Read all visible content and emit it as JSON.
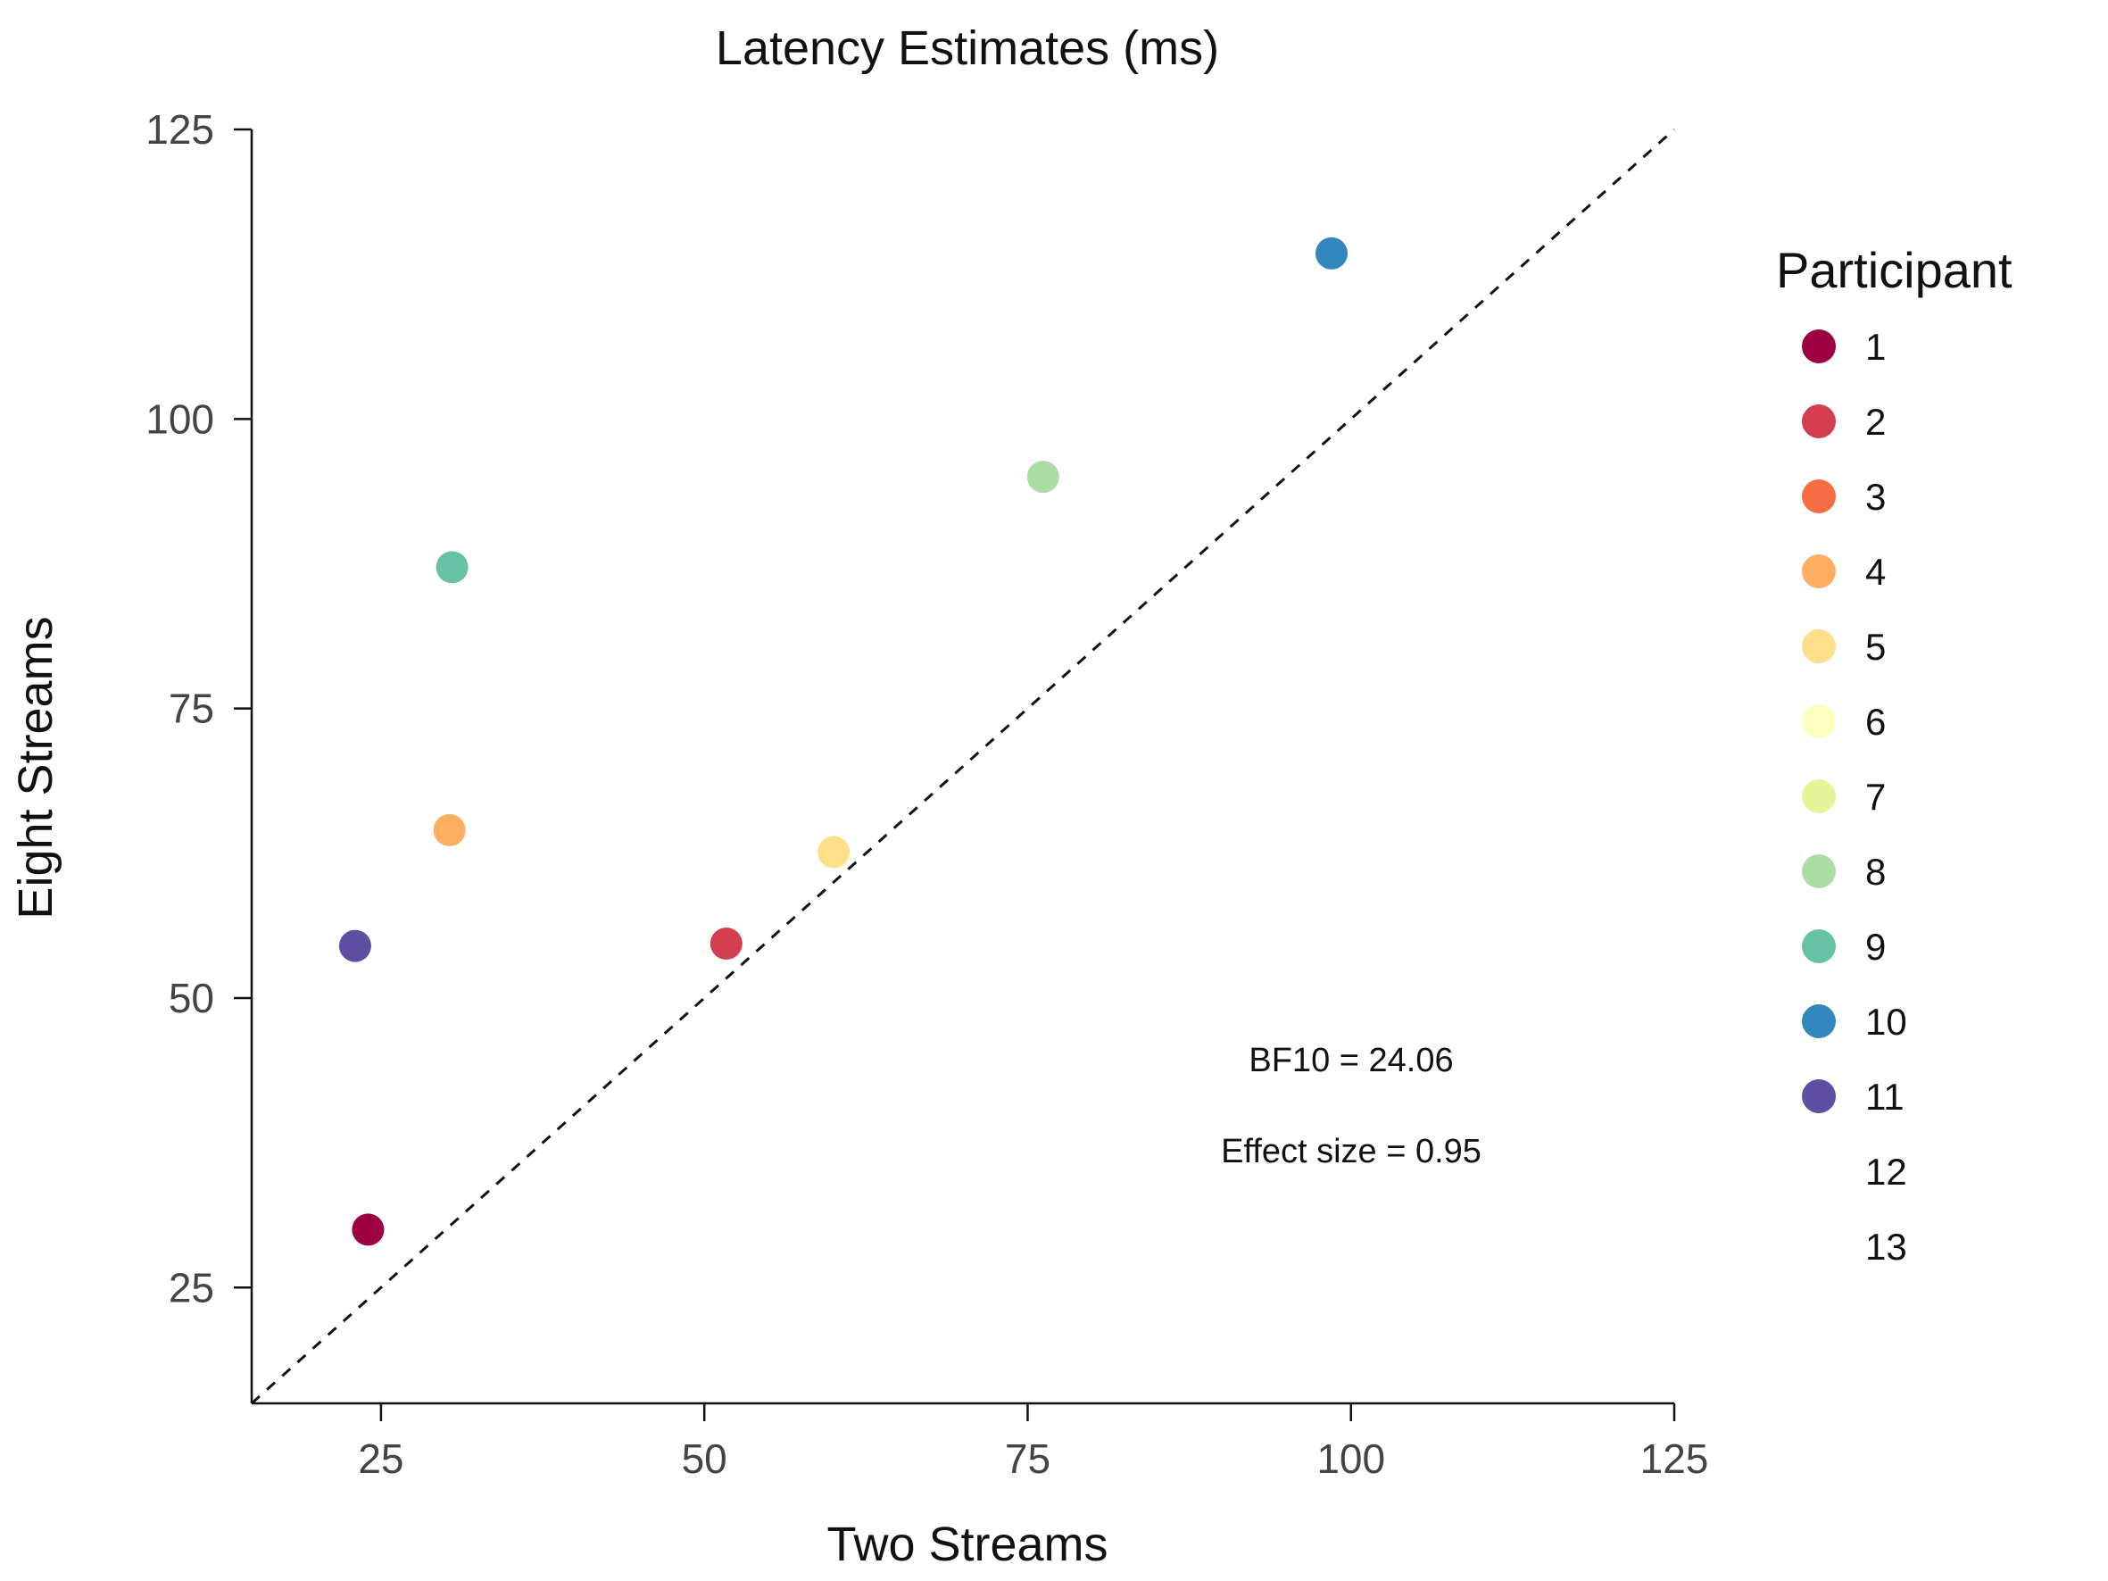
{
  "chart_data": {
    "type": "scatter",
    "title": "Latency Estimates (ms)",
    "xlabel": "Two Streams",
    "ylabel": "Eight Streams",
    "xlim": [
      15,
      125
    ],
    "ylim": [
      15,
      125
    ],
    "xticks": [
      25,
      50,
      75,
      100,
      125
    ],
    "yticks": [
      25,
      50,
      75,
      100,
      125
    ],
    "reference_line": "y = x (dashed)",
    "grid": false,
    "legend": {
      "title": "Participant",
      "placement": "right",
      "entries": [
        {
          "label": "1",
          "color": "#9e0142"
        },
        {
          "label": "2",
          "color": "#d53e4f"
        },
        {
          "label": "3",
          "color": "#f46d43"
        },
        {
          "label": "4",
          "color": "#fdae61"
        },
        {
          "label": "5",
          "color": "#fee08b"
        },
        {
          "label": "6",
          "color": "#ffffbf"
        },
        {
          "label": "7",
          "color": "#e6f598"
        },
        {
          "label": "8",
          "color": "#abdda4"
        },
        {
          "label": "9",
          "color": "#66c2a5"
        },
        {
          "label": "10",
          "color": "#3288bd"
        },
        {
          "label": "11",
          "color": "#5e4fa2"
        },
        {
          "label": "12",
          "color": ""
        },
        {
          "label": "13",
          "color": ""
        }
      ]
    },
    "points": [
      {
        "participant": "1",
        "x": 24,
        "y": 30,
        "color": "#9e0142"
      },
      {
        "participant": "2",
        "x": 51.7,
        "y": 54.7,
        "color": "#d53e4f"
      },
      {
        "participant": "4",
        "x": 30.3,
        "y": 64.5,
        "color": "#fdae61"
      },
      {
        "participant": "5",
        "x": 60,
        "y": 62.6,
        "color": "#fee08b"
      },
      {
        "participant": "8",
        "x": 76.2,
        "y": 95,
        "color": "#abdda4"
      },
      {
        "participant": "9",
        "x": 30.5,
        "y": 87.2,
        "color": "#66c2a5"
      },
      {
        "participant": "10",
        "x": 98.5,
        "y": 114.3,
        "color": "#3288bd"
      },
      {
        "participant": "11",
        "x": 23,
        "y": 54.5,
        "color": "#5e4fa2"
      }
    ],
    "annotations": [
      "BF10 = 24.06",
      "Effect size = 0.95"
    ]
  }
}
